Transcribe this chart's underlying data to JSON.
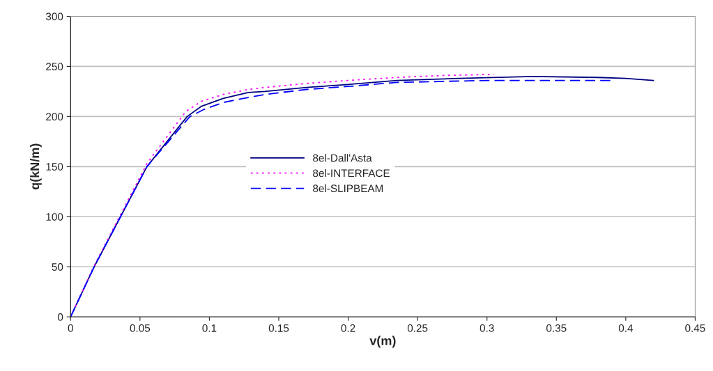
{
  "chart_data": {
    "type": "line",
    "xlabel": "v(m)",
    "ylabel": "q(kN/m)",
    "xlim": [
      0,
      0.45
    ],
    "xticks": [
      0,
      0.05,
      0.1,
      0.15,
      0.2,
      0.25,
      0.3,
      0.35,
      0.4,
      0.45
    ],
    "ylim": [
      0,
      300
    ],
    "yticks": [
      0,
      50,
      100,
      150,
      200,
      250,
      300
    ],
    "grid": "y",
    "legend": "center",
    "marker": "none",
    "series": [
      {
        "name": "8el-Dall'Asta",
        "color": "#000080",
        "line_style": "solid",
        "x": [
          0,
          0.017,
          0.036,
          0.055,
          0.084,
          0.094,
          0.11,
          0.128,
          0.14,
          0.17,
          0.2,
          0.235,
          0.28,
          0.333,
          0.38,
          0.4,
          0.42
        ],
        "values": [
          0,
          50,
          100,
          150,
          200,
          210,
          218,
          224,
          225,
          229,
          232,
          236,
          238,
          240,
          239,
          238,
          236
        ]
      },
      {
        "name": "8el-INTERFACE",
        "color": "#ff00ff",
        "line_style": "dotted",
        "x": [
          0,
          0.017,
          0.036,
          0.055,
          0.083,
          0.094,
          0.11,
          0.128,
          0.14,
          0.17,
          0.2,
          0.235,
          0.27,
          0.305
        ],
        "values": [
          0,
          51,
          102,
          153,
          205,
          215,
          222,
          227,
          229,
          233,
          236,
          239,
          241,
          242
        ]
      },
      {
        "name": "8el-SLIPBEAM",
        "color": "#0000ff",
        "line_style": "dashed",
        "x": [
          0,
          0.017,
          0.036,
          0.055,
          0.086,
          0.096,
          0.11,
          0.128,
          0.14,
          0.17,
          0.2,
          0.235,
          0.3,
          0.35,
          0.39
        ],
        "values": [
          0,
          50,
          100,
          150,
          200,
          207,
          214,
          219,
          222,
          227,
          230,
          234,
          236,
          236,
          236
        ]
      }
    ]
  }
}
